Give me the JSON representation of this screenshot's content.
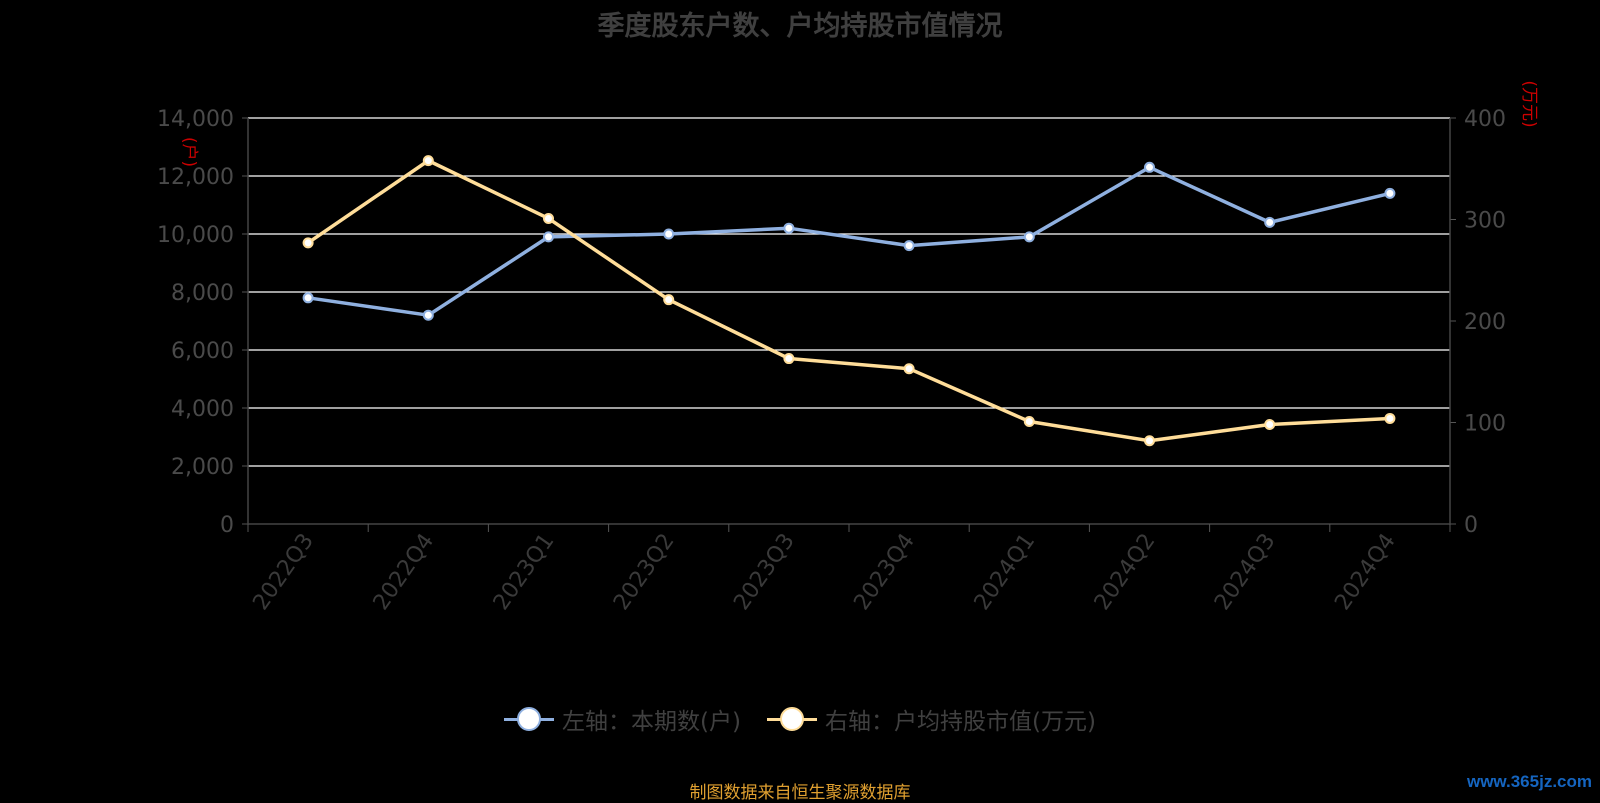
{
  "chart_data": {
    "type": "line",
    "title": "季度股东户数、户均持股市值情况",
    "categories": [
      "2022Q3",
      "2022Q4",
      "2023Q1",
      "2023Q2",
      "2023Q3",
      "2023Q4",
      "2024Q1",
      "2024Q2",
      "2024Q3",
      "2024Q4"
    ],
    "y_left": {
      "unit_label": "(户)",
      "ylim": [
        0,
        14000
      ],
      "ticks": [
        0,
        2000,
        4000,
        6000,
        8000,
        10000,
        12000,
        14000
      ],
      "tick_labels": [
        "0",
        "2,000",
        "4,000",
        "6,000",
        "8,000",
        "10,000",
        "12,000",
        "14,000"
      ]
    },
    "y_right": {
      "unit_label": "(万元)",
      "ylim": [
        0,
        400
      ],
      "ticks": [
        0,
        100,
        200,
        300,
        400
      ],
      "tick_labels": [
        "0",
        "100",
        "200",
        "300",
        "400"
      ]
    },
    "series": [
      {
        "name": "左轴：本期数(户)",
        "axis": "left",
        "color": "#8fb0e0",
        "values": [
          7800,
          7200,
          9900,
          10000,
          10200,
          9600,
          9900,
          12300,
          10400,
          11400
        ]
      },
      {
        "name": "右轴：户均持股市值(万元)",
        "axis": "right",
        "color": "#ffdd99",
        "values": [
          277,
          358,
          301,
          221,
          163,
          153,
          101,
          82,
          98,
          104
        ]
      }
    ],
    "grid": true,
    "legend_position": "bottom"
  },
  "source_text": "制图数据来自恒生聚源数据库",
  "watermark_text": "www.365jz.com"
}
